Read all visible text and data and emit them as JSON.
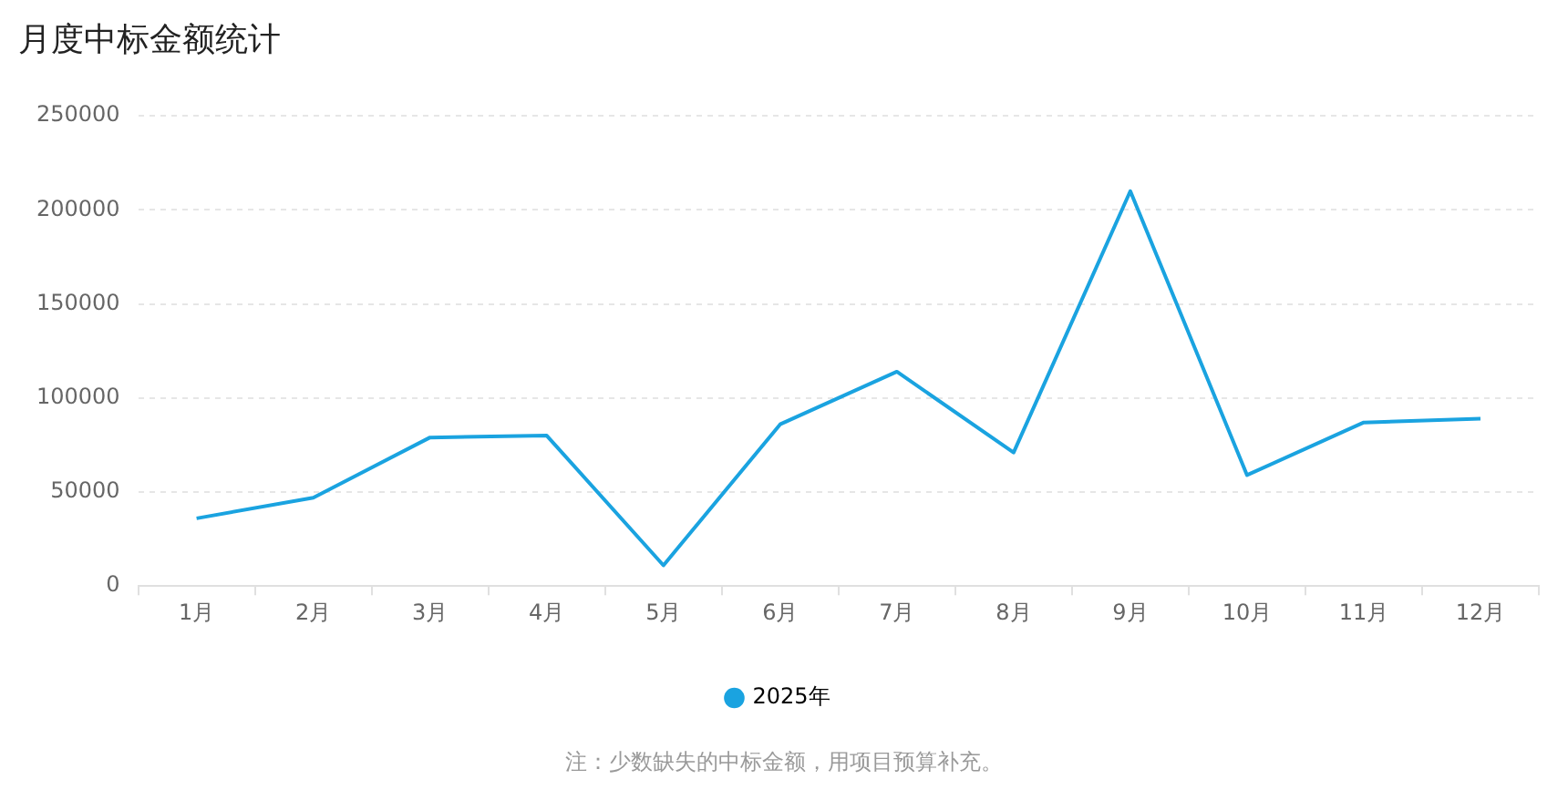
{
  "chart_data": {
    "type": "line",
    "title": "月度中标金额统计",
    "categories": [
      "1月",
      "2月",
      "3月",
      "4月",
      "5月",
      "6月",
      "7月",
      "8月",
      "9月",
      "10月",
      "11月",
      "12月"
    ],
    "series": [
      {
        "name": "2025年",
        "color": "#1aa3e0",
        "values": [
          36000,
          47000,
          79000,
          80000,
          11000,
          86000,
          114000,
          71000,
          210000,
          59000,
          87000,
          89000
        ]
      }
    ],
    "ylim": [
      0,
      250000
    ],
    "yticks": [
      0,
      50000,
      100000,
      150000,
      200000,
      250000
    ],
    "grid": "y",
    "legend": "bottom",
    "marker": "none",
    "line_style": "solid",
    "annotations": [
      "注：少数缺失的中标金额，用项目预算补充。"
    ]
  }
}
